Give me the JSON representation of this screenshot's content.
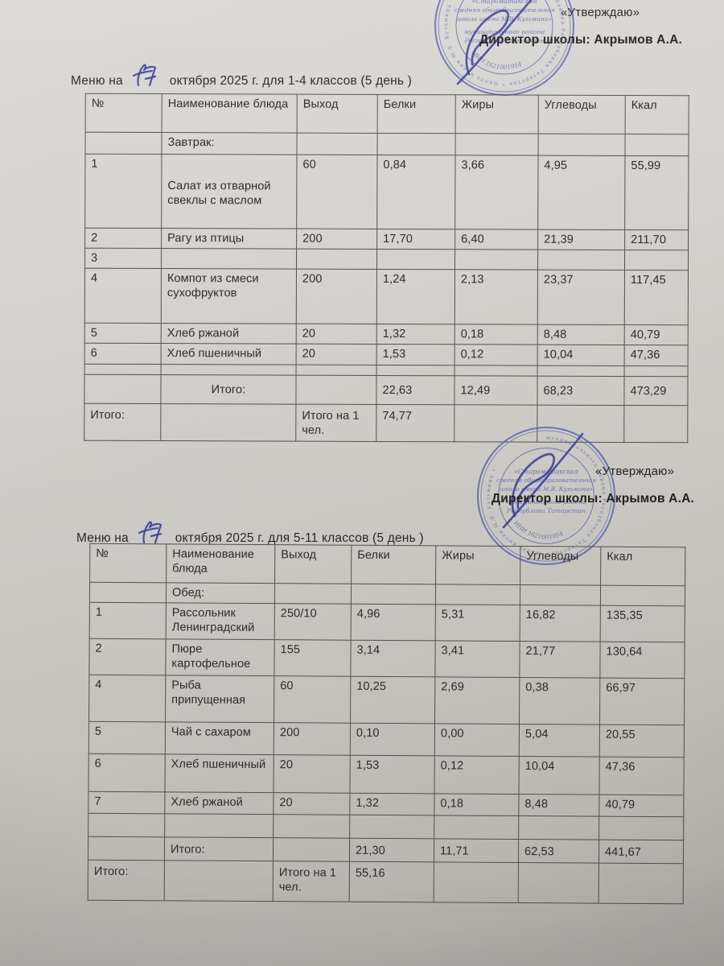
{
  "colors": {
    "paper": "#d3d1cc",
    "stamp_blue": "#5764ad",
    "ink_blue": "#3b3e9d",
    "text": "#2c2b29",
    "table_border": "#55534f"
  },
  "approval": {
    "quote": "«Утверждаю»",
    "director": "Директор школы: Акрымов А.А."
  },
  "stamp": {
    "ring_text": "муниципального района Республики Татарстан • школа имени М.В. Кузьмина • ",
    "org_lines": [
      "«Староматакская",
      "средняя общеобразовательная",
      "школа имени М.В. Кузьмина»",
      "муниципального района",
      "Республики Татарстан"
    ],
    "inn": "ИНН 1621001954"
  },
  "sections": [
    {
      "title": {
        "prefix": "Меню   на",
        "date_handwritten": "17",
        "suffix": "октября  2025 г. для 1-4 классов (5 день )"
      },
      "table": {
        "columns": [
          "№",
          "Наименование блюда",
          "Выход",
          "Белки",
          "Жиры",
          "Углеводы",
          "Ккал"
        ],
        "rows": [
          [
            "",
            "Завтрак:",
            "",
            "",
            "",
            "",
            ""
          ],
          [
            "1",
            "Салат из отварной  свеклы с  маслом",
            "60",
            "0,84",
            "3,66",
            "4,95",
            "55,99"
          ],
          [
            "2",
            "Рагу из птицы",
            "200",
            "17,70",
            "6,40",
            "21,39",
            "211,70"
          ],
          [
            "3",
            "",
            "",
            "",
            "",
            "",
            ""
          ],
          [
            "4",
            "Компот из смеси сухофруктов",
            "200",
            "1,24",
            "2,13",
            "23,37",
            "117,45"
          ],
          [
            "5",
            "Хлеб ржаной",
            "20",
            "1,32",
            "0,18",
            "8,48",
            "40,79"
          ],
          [
            "6",
            "Хлеб пшеничный",
            "20",
            "1,53",
            "0,12",
            "10,04",
            "47,36"
          ],
          [
            "",
            "",
            "",
            "",
            "",
            "",
            ""
          ],
          [
            "",
            "Итого:",
            "",
            "22,63",
            "12,49",
            "68,23",
            "473,29"
          ],
          [
            "Итого:",
            "",
            "Итого на 1 чел.",
            "74,77",
            "",
            "",
            ""
          ]
        ]
      }
    },
    {
      "title": {
        "prefix": "Меню   на",
        "date_handwritten": "17",
        "suffix": "октября   2025 г. для 5-11 классов (5 день )"
      },
      "table": {
        "columns": [
          "№",
          "Наименование блюда",
          "Выход",
          "Белки",
          "Жиры",
          "Углеводы",
          "Ккал"
        ],
        "rows": [
          [
            "",
            "Обед:",
            "",
            "",
            "",
            "",
            ""
          ],
          [
            "1",
            "Рассольник Ленинградский",
            "250/10",
            "4,96",
            "5,31",
            "16,82",
            "135,35"
          ],
          [
            "2",
            "Пюре картофельное",
            "155",
            "3,14",
            "3,41",
            "21,77",
            "130,64"
          ],
          [
            "4",
            "Рыба припущенная",
            "60",
            "10,25",
            "2,69",
            "0,38",
            "66,97"
          ],
          [
            "5",
            "Чай с сахаром",
            "200",
            "0,10",
            "0,00",
            "5,04",
            "20,55"
          ],
          [
            "6",
            "Хлеб пшеничный",
            "20",
            "1,53",
            "0,12",
            "10,04",
            "47,36"
          ],
          [
            "7",
            "Хлеб  ржаной",
            "20",
            "1,32",
            "0,18",
            "8,48",
            "40,79"
          ],
          [
            "",
            "",
            "",
            "",
            "",
            "",
            ""
          ],
          [
            "",
            "Итого:",
            "",
            "21,30",
            "11,71",
            "62,53",
            "441,67"
          ],
          [
            "Итого:",
            "",
            "Итого на 1 чел.",
            "55,16",
            "",
            "",
            ""
          ]
        ]
      }
    }
  ]
}
